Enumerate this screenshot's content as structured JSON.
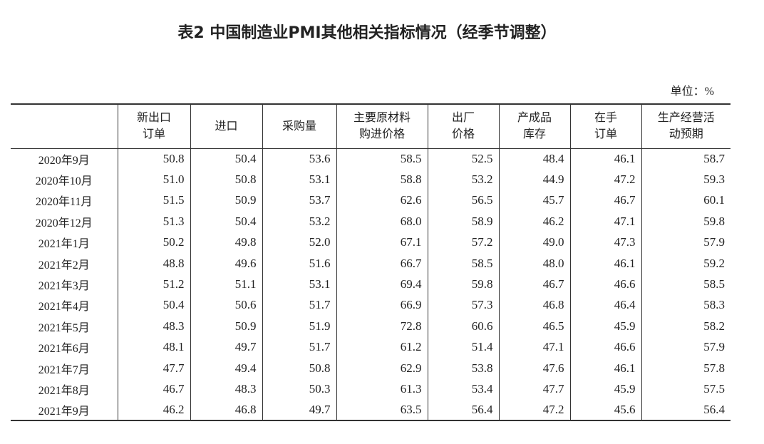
{
  "title": "表2 中国制造业PMI其他相关指标情况（经季节调整）",
  "unit": "单位：%",
  "table": {
    "header": [
      [
        "新出口",
        "订单"
      ],
      [
        "进口"
      ],
      [
        "采购量"
      ],
      [
        "主要原材料",
        "购进价格"
      ],
      [
        "出厂",
        "价格"
      ],
      [
        "产成品",
        "库存"
      ],
      [
        "在手",
        "订单"
      ],
      [
        "生产经营活",
        "动预期"
      ]
    ],
    "rows": [
      [
        "2020年9月",
        "50.8",
        "50.4",
        "53.6",
        "58.5",
        "52.5",
        "48.4",
        "46.1",
        "58.7"
      ],
      [
        "2020年10月",
        "51.0",
        "50.8",
        "53.1",
        "58.8",
        "53.2",
        "44.9",
        "47.2",
        "59.3"
      ],
      [
        "2020年11月",
        "51.5",
        "50.9",
        "53.7",
        "62.6",
        "56.5",
        "45.7",
        "46.7",
        "60.1"
      ],
      [
        "2020年12月",
        "51.3",
        "50.4",
        "53.2",
        "68.0",
        "58.9",
        "46.2",
        "47.1",
        "59.8"
      ],
      [
        "2021年1月",
        "50.2",
        "49.8",
        "52.0",
        "67.1",
        "57.2",
        "49.0",
        "47.3",
        "57.9"
      ],
      [
        "2021年2月",
        "48.8",
        "49.6",
        "51.6",
        "66.7",
        "58.5",
        "48.0",
        "46.1",
        "59.2"
      ],
      [
        "2021年3月",
        "51.2",
        "51.1",
        "53.1",
        "69.4",
        "59.8",
        "46.7",
        "46.6",
        "58.5"
      ],
      [
        "2021年4月",
        "50.4",
        "50.6",
        "51.7",
        "66.9",
        "57.3",
        "46.8",
        "46.4",
        "58.3"
      ],
      [
        "2021年5月",
        "48.3",
        "50.9",
        "51.9",
        "72.8",
        "60.6",
        "46.5",
        "45.9",
        "58.2"
      ],
      [
        "2021年6月",
        "48.1",
        "49.7",
        "51.7",
        "61.2",
        "51.4",
        "47.1",
        "46.6",
        "57.9"
      ],
      [
        "2021年7月",
        "47.7",
        "49.4",
        "50.8",
        "62.9",
        "53.8",
        "47.6",
        "46.1",
        "57.8"
      ],
      [
        "2021年8月",
        "46.7",
        "48.3",
        "50.3",
        "61.3",
        "53.4",
        "47.7",
        "45.9",
        "57.5"
      ],
      [
        "2021年9月",
        "46.2",
        "46.8",
        "49.7",
        "63.5",
        "56.4",
        "47.2",
        "45.6",
        "56.4"
      ]
    ]
  }
}
